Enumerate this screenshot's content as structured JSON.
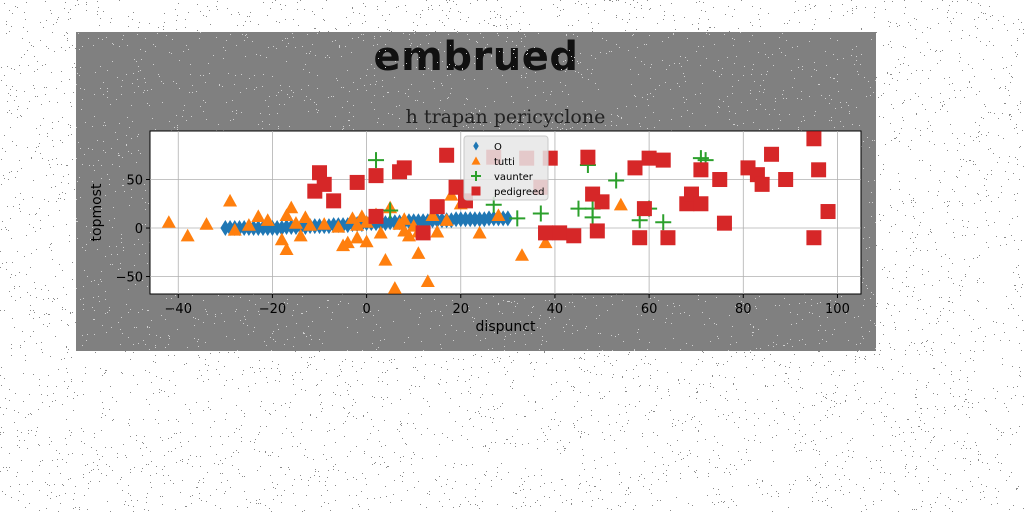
{
  "figure": {
    "suptitle": "embrued"
  },
  "chart_data": {
    "type": "scatter",
    "title": "h trapan pericyclone",
    "xlabel": "dispunct",
    "ylabel": "topmost",
    "xlim": [
      -46,
      105
    ],
    "ylim": [
      -68,
      100
    ],
    "xticks": [
      -40,
      -20,
      0,
      20,
      40,
      60,
      80,
      100
    ],
    "yticks": [
      -50,
      0,
      50
    ],
    "grid": true,
    "legend_position": "top-center",
    "series": [
      {
        "name": "O",
        "marker": "diamond",
        "color": "#1f77b4",
        "points": [
          [
            -30,
            0
          ],
          [
            -29,
            0
          ],
          [
            -28,
            0
          ],
          [
            -27,
            0
          ],
          [
            -26,
            0
          ],
          [
            -25,
            0
          ],
          [
            -24,
            0
          ],
          [
            -23,
            0
          ],
          [
            -22,
            0
          ],
          [
            -21,
            0
          ],
          [
            -20,
            0
          ],
          [
            -19,
            0
          ],
          [
            -18,
            0
          ],
          [
            -17,
            1
          ],
          [
            -16,
            1
          ],
          [
            -15,
            1
          ],
          [
            -14,
            1
          ],
          [
            -13,
            1
          ],
          [
            -12,
            2
          ],
          [
            -11,
            2
          ],
          [
            -10,
            2
          ],
          [
            -9,
            2
          ],
          [
            -8,
            2
          ],
          [
            -7,
            3
          ],
          [
            -6,
            3
          ],
          [
            -5,
            3
          ],
          [
            -4,
            3
          ],
          [
            -3,
            4
          ],
          [
            -2,
            4
          ],
          [
            -1,
            4
          ],
          [
            0,
            5
          ],
          [
            1,
            5
          ],
          [
            2,
            5
          ],
          [
            3,
            5
          ],
          [
            4,
            5
          ],
          [
            5,
            6
          ],
          [
            6,
            6
          ],
          [
            7,
            6
          ],
          [
            8,
            6
          ],
          [
            9,
            7
          ],
          [
            10,
            7
          ],
          [
            11,
            7
          ],
          [
            12,
            7
          ],
          [
            13,
            7
          ],
          [
            14,
            8
          ],
          [
            15,
            8
          ],
          [
            16,
            8
          ],
          [
            17,
            8
          ],
          [
            18,
            8
          ],
          [
            19,
            9
          ],
          [
            20,
            9
          ],
          [
            21,
            9
          ],
          [
            22,
            9
          ],
          [
            23,
            9
          ],
          [
            24,
            9
          ],
          [
            25,
            9
          ],
          [
            26,
            10
          ],
          [
            27,
            10
          ],
          [
            28,
            10
          ],
          [
            29,
            10
          ],
          [
            30,
            10
          ]
        ]
      },
      {
        "name": "tutti",
        "marker": "triangle",
        "color": "#ff7f0e",
        "points": [
          [
            -42,
            6
          ],
          [
            -38,
            -8
          ],
          [
            -34,
            4
          ],
          [
            -28,
            -2
          ],
          [
            -25,
            3
          ],
          [
            -29,
            28
          ],
          [
            -23,
            12
          ],
          [
            -21,
            8
          ],
          [
            -18,
            -12
          ],
          [
            -17,
            13
          ],
          [
            -14,
            -8
          ],
          [
            -13,
            11
          ],
          [
            -12,
            3
          ],
          [
            -17,
            -22
          ],
          [
            -16,
            21
          ],
          [
            -15,
            5
          ],
          [
            -9,
            4
          ],
          [
            -5,
            -18
          ],
          [
            -4,
            -15
          ],
          [
            -3,
            10
          ],
          [
            -2,
            -10
          ],
          [
            -1,
            12
          ],
          [
            0,
            6
          ],
          [
            -2,
            3
          ],
          [
            0,
            -14
          ],
          [
            1,
            10
          ],
          [
            2,
            14
          ],
          [
            3,
            -5
          ],
          [
            4,
            -33
          ],
          [
            5,
            21
          ],
          [
            6,
            -62
          ],
          [
            7,
            4
          ],
          [
            8,
            9
          ],
          [
            9,
            -8
          ],
          [
            11,
            -4
          ],
          [
            11,
            -26
          ],
          [
            13,
            -55
          ],
          [
            14,
            13
          ],
          [
            15,
            -4
          ],
          [
            17,
            8
          ],
          [
            18,
            34
          ],
          [
            20,
            25
          ],
          [
            24,
            -5
          ],
          [
            28,
            13
          ],
          [
            33,
            -28
          ],
          [
            38,
            -15
          ],
          [
            54,
            24
          ],
          [
            8,
            -3
          ],
          [
            -6,
            1
          ],
          [
            10,
            2
          ]
        ]
      },
      {
        "name": "vaunter",
        "marker": "plus",
        "color": "#2ca02c",
        "points": [
          [
            2,
            70
          ],
          [
            5,
            18
          ],
          [
            27,
            24
          ],
          [
            32,
            10
          ],
          [
            37,
            15
          ],
          [
            45,
            20
          ],
          [
            47,
            65
          ],
          [
            48,
            11
          ],
          [
            53,
            49
          ],
          [
            58,
            8
          ],
          [
            63,
            6
          ],
          [
            71,
            72
          ],
          [
            72,
            70
          ],
          [
            48,
            20
          ],
          [
            60,
            20
          ]
        ]
      },
      {
        "name": "pedigreed",
        "marker": "square",
        "color": "#d62728",
        "points": [
          [
            -11,
            38
          ],
          [
            -10,
            57
          ],
          [
            -9,
            45
          ],
          [
            -7,
            28
          ],
          [
            -2,
            47
          ],
          [
            2,
            54
          ],
          [
            2,
            12
          ],
          [
            7,
            58
          ],
          [
            8,
            62
          ],
          [
            12,
            -5
          ],
          [
            15,
            22
          ],
          [
            17,
            75
          ],
          [
            19,
            42
          ],
          [
            21,
            28
          ],
          [
            27,
            73
          ],
          [
            34,
            72
          ],
          [
            37,
            42
          ],
          [
            38,
            -5
          ],
          [
            39,
            72
          ],
          [
            41,
            -5
          ],
          [
            44,
            -8
          ],
          [
            47,
            73
          ],
          [
            48,
            35
          ],
          [
            49,
            -3
          ],
          [
            50,
            27
          ],
          [
            57,
            62
          ],
          [
            59,
            20
          ],
          [
            60,
            72
          ],
          [
            63,
            70
          ],
          [
            64,
            -10
          ],
          [
            68,
            25
          ],
          [
            69,
            35
          ],
          [
            71,
            25
          ],
          [
            71,
            60
          ],
          [
            75,
            50
          ],
          [
            76,
            5
          ],
          [
            81,
            62
          ],
          [
            83,
            55
          ],
          [
            84,
            45
          ],
          [
            86,
            76
          ],
          [
            89,
            50
          ],
          [
            95,
            92
          ],
          [
            96,
            60
          ],
          [
            95,
            -10
          ],
          [
            98,
            17
          ],
          [
            58,
            -10
          ]
        ]
      }
    ]
  }
}
